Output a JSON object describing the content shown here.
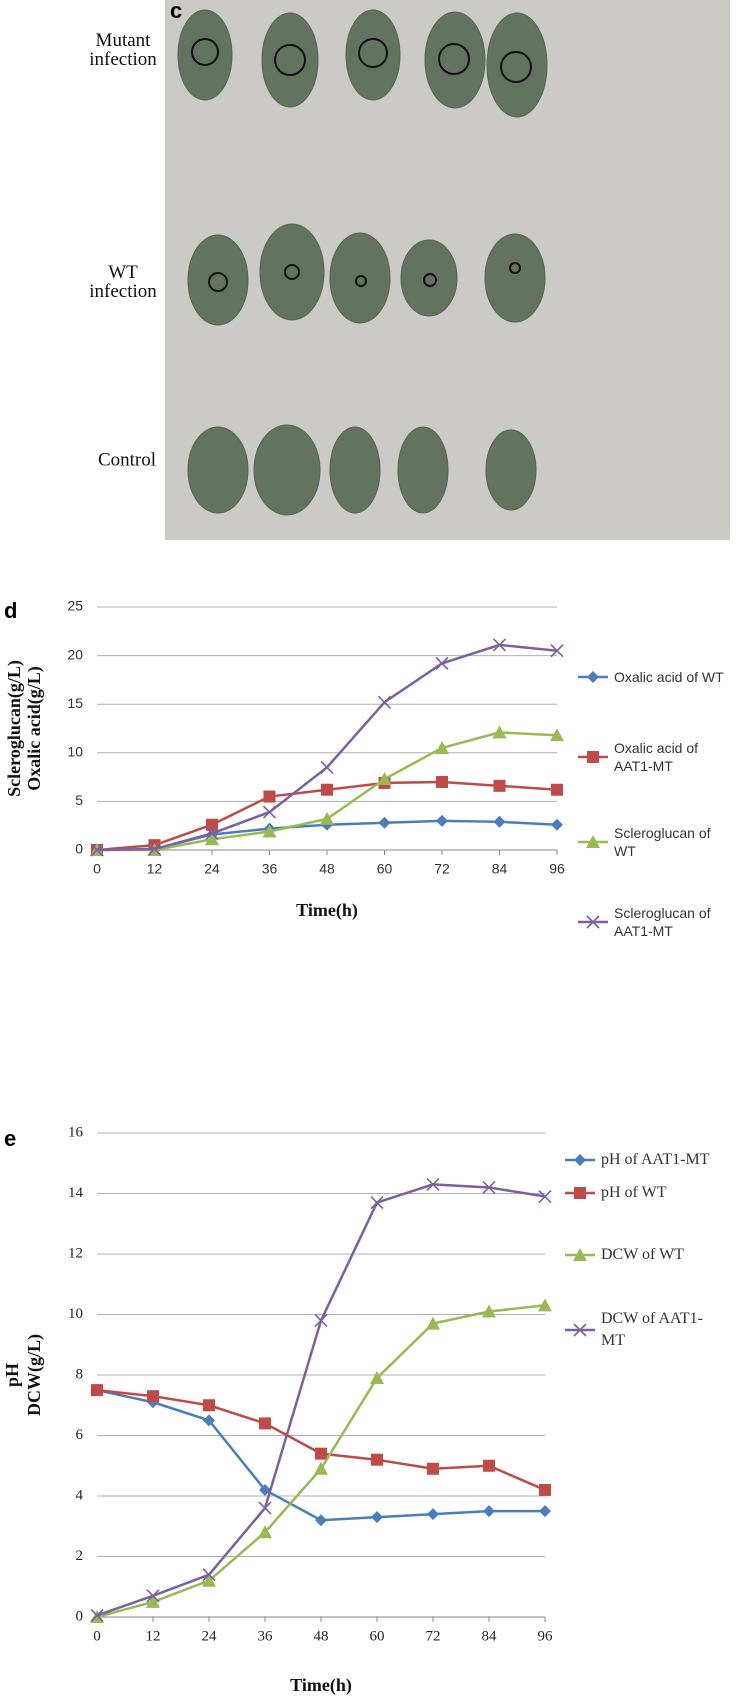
{
  "photo": {
    "panel": "c",
    "rows": [
      "Mutant infection",
      "WT infection",
      "Control"
    ]
  },
  "chart_data": [
    {
      "type": "line",
      "panel": "d",
      "x_label": "Time(h)",
      "y_label": [
        "Scleroglucan(g/L)",
        "Oxalic acid(g/L)"
      ],
      "x": [
        0,
        12,
        24,
        36,
        48,
        60,
        72,
        84,
        96
      ],
      "xlim": [
        0,
        96
      ],
      "xticks": [
        0,
        12,
        24,
        36,
        48,
        60,
        72,
        84,
        96
      ],
      "ylim": [
        0,
        25
      ],
      "yticks": [
        0,
        5,
        10,
        15,
        20,
        25
      ],
      "grid": true,
      "series": [
        {
          "name": "Oxalic acid of WT",
          "color": "#4a7ebb",
          "marker": "diamond",
          "values": [
            0,
            0.1,
            1.6,
            2.2,
            2.6,
            2.8,
            3.0,
            2.9,
            2.6
          ]
        },
        {
          "name": "Oxalic acid of AAT1-MT",
          "color": "#be4b48",
          "marker": "square",
          "values": [
            0,
            0.5,
            2.6,
            5.5,
            6.2,
            6.9,
            7.0,
            6.6,
            6.2
          ]
        },
        {
          "name": "Scleroglucan of WT",
          "color": "#98b954",
          "marker": "triangle",
          "values": [
            0,
            0,
            1.1,
            1.9,
            3.2,
            7.3,
            10.5,
            12.1,
            11.8
          ]
        },
        {
          "name": "Scleroglucan of AAT1-MT",
          "color": "#7d60a0",
          "marker": "x",
          "values": [
            0,
            0.1,
            1.7,
            3.9,
            8.5,
            15.2,
            19.2,
            21.1,
            20.5
          ]
        }
      ]
    },
    {
      "type": "line",
      "panel": "e",
      "x_label": "Time(h)",
      "y_label": [
        "pH",
        "DCW(g/L)"
      ],
      "x": [
        0,
        12,
        24,
        36,
        48,
        60,
        72,
        84,
        96
      ],
      "xlim": [
        0,
        96
      ],
      "xticks": [
        0,
        12,
        24,
        36,
        48,
        60,
        72,
        84,
        96
      ],
      "ylim": [
        0,
        16
      ],
      "yticks": [
        0,
        2,
        4,
        6,
        8,
        10,
        12,
        14,
        16
      ],
      "grid": true,
      "series": [
        {
          "name": "pH of AAT1-MT",
          "color": "#4a7ebb",
          "marker": "diamond",
          "values": [
            7.5,
            7.1,
            6.5,
            4.2,
            3.2,
            3.3,
            3.4,
            3.5,
            3.5
          ]
        },
        {
          "name": "pH of WT",
          "color": "#be4b48",
          "marker": "square",
          "values": [
            7.5,
            7.3,
            7.0,
            6.4,
            5.4,
            5.2,
            4.9,
            5.0,
            4.2
          ]
        },
        {
          "name": "DCW of WT",
          "color": "#98b954",
          "marker": "triangle",
          "values": [
            0,
            0.5,
            1.2,
            2.8,
            4.9,
            7.9,
            9.7,
            10.1,
            10.3
          ]
        },
        {
          "name": "DCW of AAT1-MT",
          "color": "#7d60a0",
          "marker": "x",
          "values": [
            0.05,
            0.7,
            1.4,
            3.6,
            9.8,
            13.7,
            14.3,
            14.2,
            13.9
          ]
        }
      ]
    }
  ]
}
